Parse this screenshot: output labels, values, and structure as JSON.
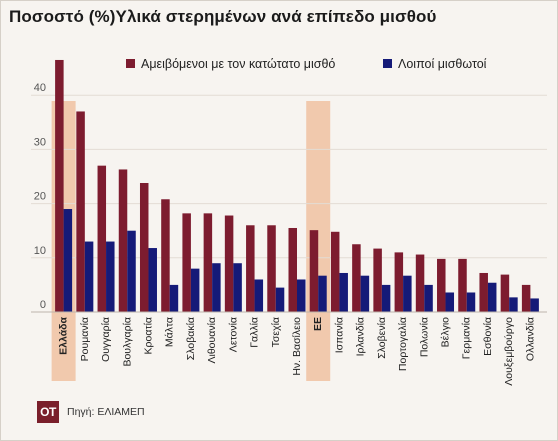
{
  "colors": {
    "min_wage": "#7d1c2f",
    "other": "#151a78",
    "highlight": "#f1c9ad",
    "grid": "#e3dcd4",
    "logo": "#7a1f2b"
  },
  "logo_text": "OT",
  "source": "Πηγή: ΕΛΙΑΜΕΠ",
  "chart_data": {
    "type": "bar",
    "title": "Ποσοστό (%)Υλικά στερημένων ανά επίπεδο μισθού",
    "xlabel": "",
    "ylabel": "",
    "ylim": [
      0,
      50
    ],
    "yticks": [
      0,
      10,
      20,
      30,
      40
    ],
    "grid": true,
    "legend_position": "top-right",
    "highlighted_categories": [
      "Ελλάδα",
      "ΕΕ"
    ],
    "categories": [
      "Ελλάδα",
      "Ρουμανία",
      "Ουγγαρία",
      "Βουλγαρία",
      "Κροατία",
      "Μάλτα",
      "Σλοβακία",
      "Λιθουανία",
      "Λετονία",
      "Γαλλία",
      "Τσεχία",
      "Ην. Βασίλειο",
      "ΕΕ",
      "Ισπανία",
      "Ιρλανδία",
      "Σλοβενία",
      "Πορτογαλία",
      "Πολωνία",
      "Βέλγιο",
      "Γερμανία",
      "Εσθονία",
      "Λουξεμβούργο",
      "Ολλανδία"
    ],
    "series": [
      {
        "name": "Αμειβόμενοι με τον κατώτατο μισθό",
        "values": [
          46.5,
          37,
          27,
          26.3,
          23.8,
          20.8,
          18.2,
          18.2,
          17.8,
          16,
          16,
          15.5,
          15.1,
          14.8,
          12.5,
          11.7,
          11,
          10.6,
          9.8,
          9.8,
          7.2,
          6.9,
          5
        ]
      },
      {
        "name": "Λοιποί μισθωτοί",
        "values": [
          19,
          13,
          13,
          15,
          11.8,
          5,
          8,
          9,
          9,
          6,
          4.5,
          6,
          6.7,
          7.2,
          6.7,
          5,
          6.7,
          5,
          3.6,
          3.6,
          5.4,
          2.7,
          2.5
        ]
      }
    ]
  }
}
